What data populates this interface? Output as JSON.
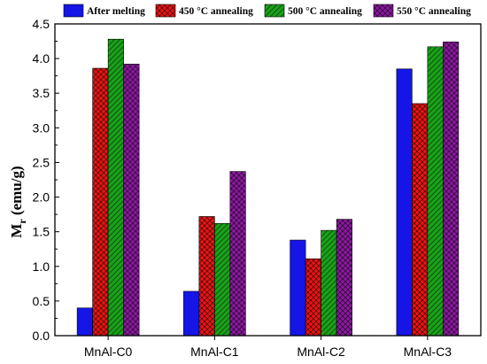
{
  "chart_data": {
    "type": "bar",
    "categories": [
      "MnAl-C0",
      "MnAl-C1",
      "MnAl-C2",
      "MnAl-C3"
    ],
    "series": [
      {
        "name": "After melting",
        "values": [
          0.4,
          0.64,
          1.38,
          3.85
        ],
        "color": "#1515e8",
        "pattern": "solid"
      },
      {
        "name": "450 °C annealing",
        "values": [
          3.86,
          1.72,
          1.11,
          3.35
        ],
        "color": "#e81515",
        "pattern": "crosshatch"
      },
      {
        "name": "500 °C annealing",
        "values": [
          4.28,
          1.62,
          1.52,
          4.17
        ],
        "color": "#1aa11a",
        "pattern": "diagonal"
      },
      {
        "name": "550 °C annealing",
        "values": [
          3.92,
          2.37,
          1.68,
          4.24
        ],
        "color": "#8a1a9e",
        "pattern": "crosshatch"
      }
    ],
    "ylim": [
      0,
      4.5
    ],
    "yticks": [
      "0.0",
      "0.5",
      "1.0",
      "1.5",
      "2.0",
      "2.5",
      "3.0",
      "3.5",
      "4.0",
      "4.5"
    ],
    "ylabel_main": "M",
    "ylabel_sub": "r",
    "ylabel_rest": " (emu/g)",
    "xlabel": "",
    "legend_position": "top",
    "grid": false
  }
}
